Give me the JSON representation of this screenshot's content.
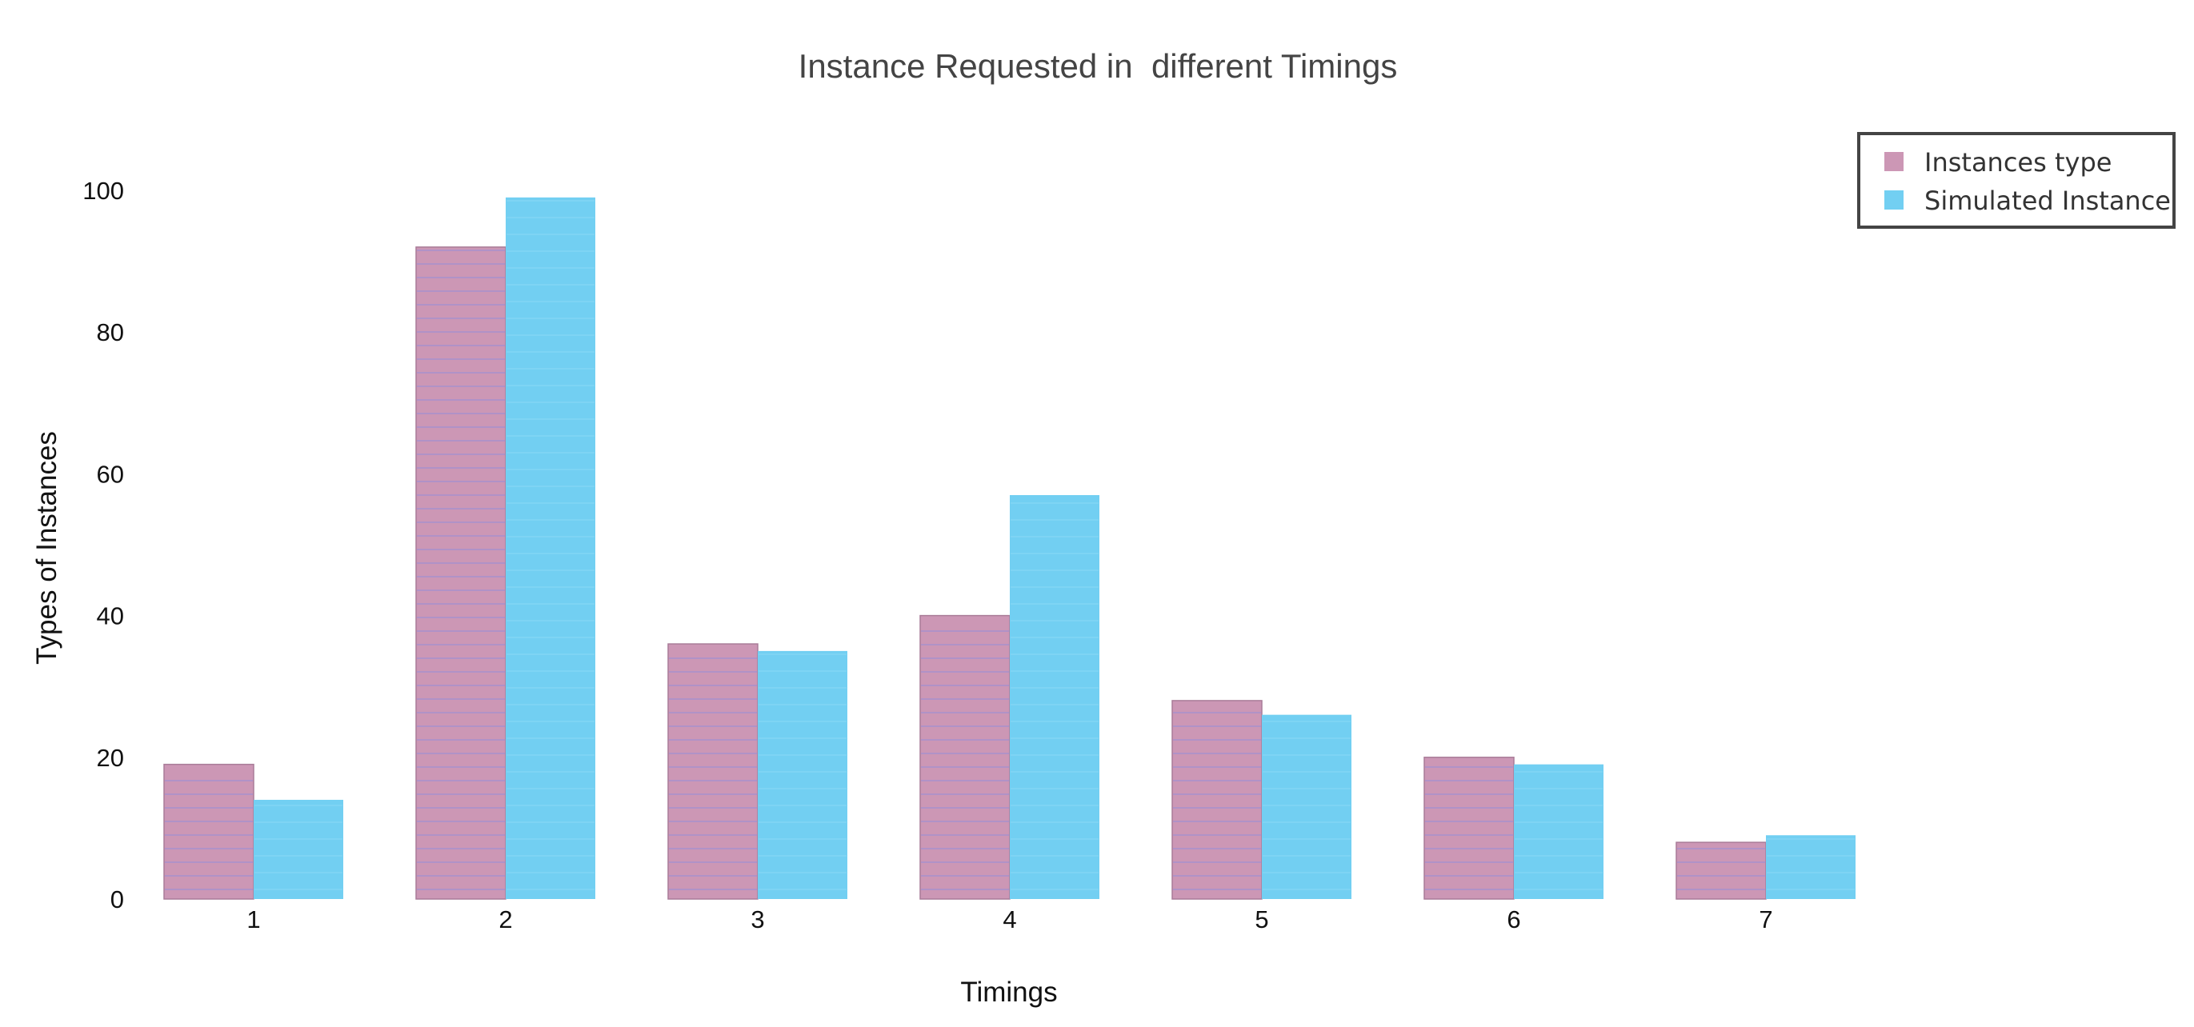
{
  "chart_data": {
    "type": "bar",
    "title": "Instance Requested in  different Timings",
    "xlabel": "Timings",
    "ylabel": "Types of Instances",
    "categories": [
      "1",
      "2",
      "3",
      "4",
      "5",
      "6",
      "7"
    ],
    "series": [
      {
        "name": "Instances type",
        "values": [
          19,
          92,
          36,
          40,
          28,
          20,
          8
        ],
        "color": "#cc97b5",
        "line_color": "#9b8fd6"
      },
      {
        "name": "Simulated Instance",
        "values": [
          14,
          99,
          35,
          57,
          26,
          19,
          9
        ],
        "color": "#72cff2",
        "line_color": "#8fdcf7"
      }
    ],
    "ylim": [
      0,
      110
    ],
    "yticks": [
      0,
      20,
      40,
      60,
      80,
      100
    ],
    "grid": false,
    "legend_position": "top-right"
  }
}
